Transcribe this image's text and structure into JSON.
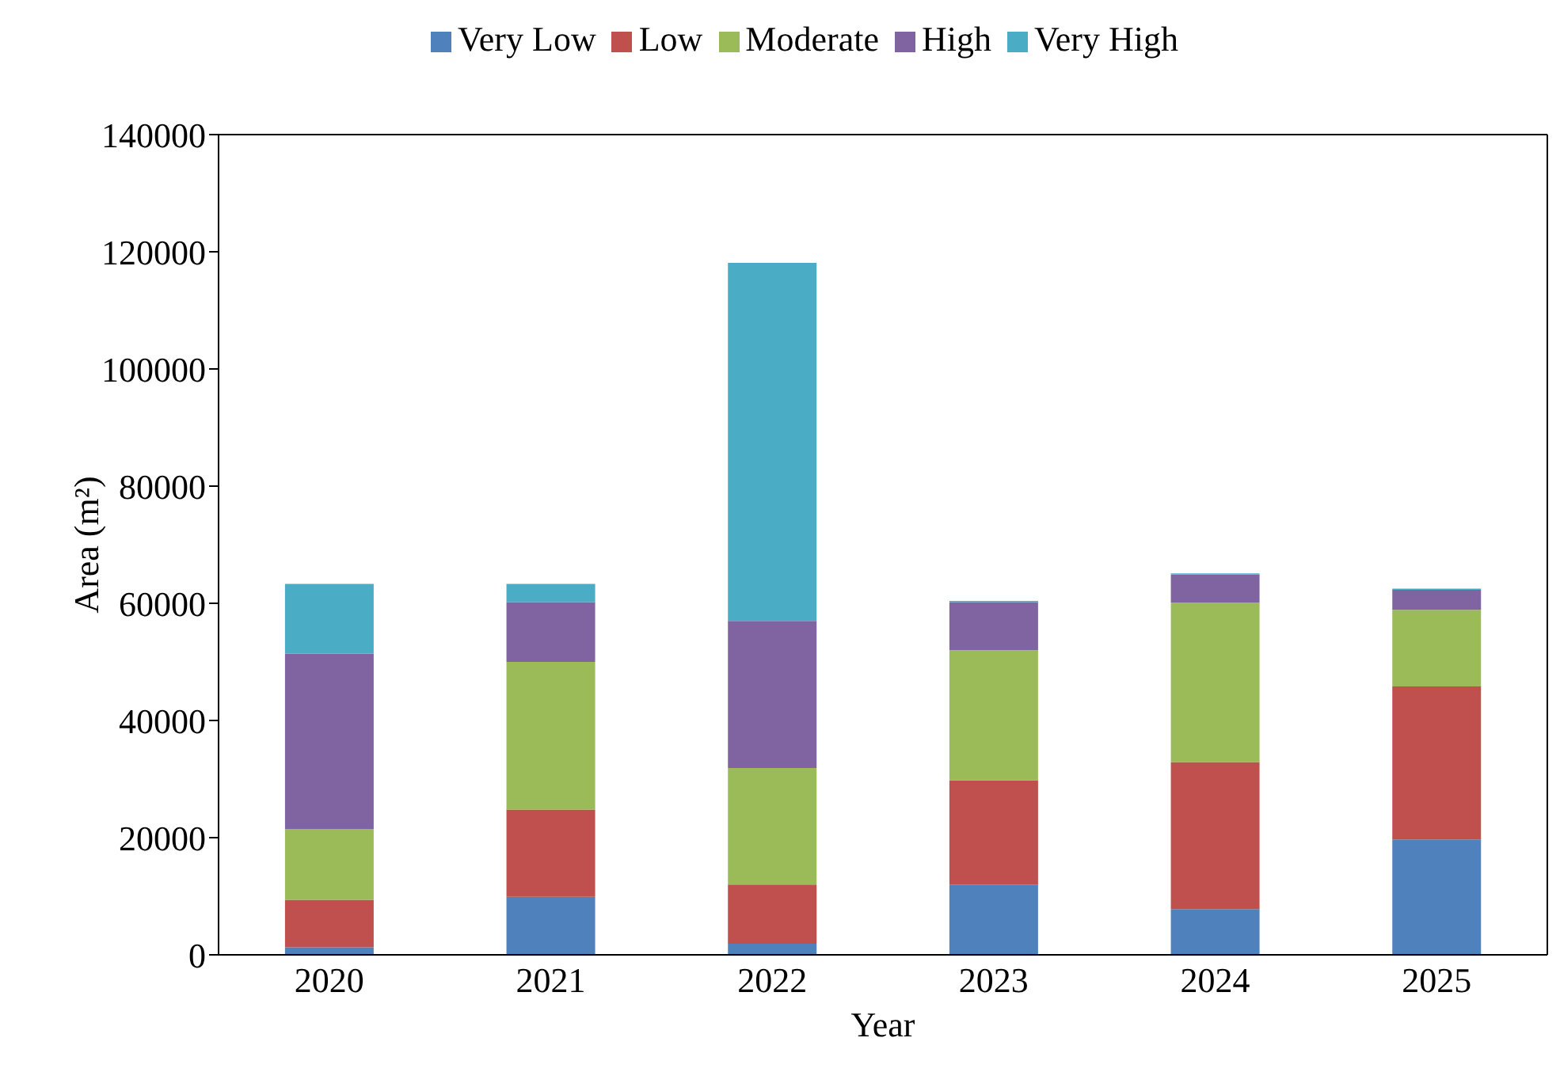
{
  "chart_data": {
    "type": "bar",
    "stacked": true,
    "xlabel": "Year",
    "ylabel": "Area (m²)",
    "categories": [
      "2020",
      "2021",
      "2022",
      "2023",
      "2024",
      "2025"
    ],
    "series": [
      {
        "name": "Very Low",
        "color": "#4f81bd",
        "values": [
          1300,
          9900,
          1900,
          12000,
          7800,
          19700
        ]
      },
      {
        "name": "Low",
        "color": "#c0504d",
        "values": [
          8100,
          14900,
          10100,
          17800,
          25100,
          26100
        ]
      },
      {
        "name": "Moderate",
        "color": "#9bbb59",
        "values": [
          12100,
          25200,
          19900,
          22200,
          27200,
          13100
        ]
      },
      {
        "name": "High",
        "color": "#8064a2",
        "values": [
          29900,
          10200,
          25100,
          8200,
          4800,
          3400
        ]
      },
      {
        "name": "Very High",
        "color": "#4bacc6",
        "values": [
          11900,
          3100,
          61100,
          200,
          200,
          200
        ]
      }
    ],
    "ylim": [
      0,
      140000
    ],
    "yticks": [
      0,
      20000,
      40000,
      60000,
      80000,
      100000,
      120000,
      140000
    ],
    "legend": "top",
    "grid": false
  }
}
